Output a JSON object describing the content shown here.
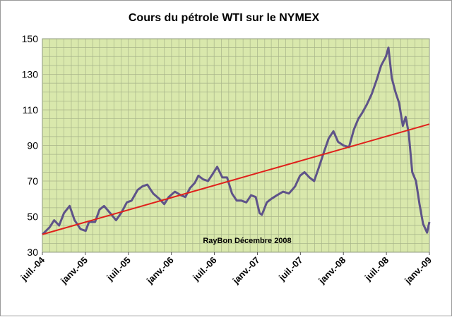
{
  "chart_data": {
    "type": "line",
    "title": "Cours du pétrole WTI sur le NYMEX",
    "annotation": "RayBon Décembre 2008",
    "xlabel": "",
    "ylabel": "",
    "x_tick_labels": [
      "juil.-04",
      "janv.-05",
      "juil.-05",
      "janv.-06",
      "juil.-06",
      "janv.-07",
      "juil.-07",
      "janv.-08",
      "juil.-08",
      "janv.-09"
    ],
    "xlim": [
      "2004-07-01",
      "2009-01-01"
    ],
    "ylim": [
      30,
      150
    ],
    "y_ticks": [
      30,
      50,
      70,
      90,
      110,
      130,
      150
    ],
    "grid": true,
    "legend": "none",
    "colors": {
      "plot_background": "#d9e8ac",
      "price_line": "#5e5389",
      "trend_line": "#e0201b",
      "grid": "#a8b58a"
    },
    "series": [
      {
        "x": [
          "2004-07-01",
          "2004-08-01",
          "2004-08-20",
          "2004-09-10",
          "2004-10-01",
          "2004-10-25",
          "2004-11-15",
          "2004-12-10",
          "2005-01-01",
          "2005-01-15",
          "2005-02-10",
          "2005-03-01",
          "2005-03-20",
          "2005-04-15",
          "2005-05-10",
          "2005-06-01",
          "2005-06-25",
          "2005-07-15",
          "2005-08-10",
          "2005-08-30",
          "2005-09-20",
          "2005-10-15",
          "2005-11-10",
          "2005-12-01",
          "2005-12-20",
          "2006-01-15",
          "2006-02-10",
          "2006-03-01",
          "2006-03-20",
          "2006-04-10",
          "2006-04-25",
          "2006-05-15",
          "2006-06-05",
          "2006-06-25",
          "2006-07-14",
          "2006-08-05",
          "2006-08-25",
          "2006-09-15",
          "2006-10-05",
          "2006-10-25",
          "2006-11-15",
          "2006-12-05",
          "2006-12-25",
          "2007-01-10",
          "2007-01-20",
          "2007-02-10",
          "2007-03-01",
          "2007-03-25",
          "2007-04-20",
          "2007-05-15",
          "2007-06-10",
          "2007-07-01",
          "2007-07-20",
          "2007-08-10",
          "2007-08-30",
          "2007-09-20",
          "2007-10-10",
          "2007-10-31",
          "2007-11-20",
          "2007-12-10",
          "2008-01-02",
          "2008-01-25",
          "2008-02-15",
          "2008-03-05",
          "2008-03-20",
          "2008-04-10",
          "2008-05-01",
          "2008-05-22",
          "2008-06-10",
          "2008-06-30",
          "2008-07-11",
          "2008-07-25",
          "2008-08-10",
          "2008-08-25",
          "2008-09-10",
          "2008-09-22",
          "2008-10-05",
          "2008-10-20",
          "2008-11-05",
          "2008-11-20",
          "2008-12-05",
          "2008-12-22",
          "2009-01-01"
        ],
        "values": [
          40,
          44,
          48,
          45,
          52,
          56,
          48,
          43,
          42,
          47,
          47,
          54,
          56,
          52,
          48,
          52,
          58,
          59,
          65,
          67,
          68,
          63,
          60,
          57,
          61,
          64,
          62,
          61,
          66,
          69,
          73,
          71,
          70,
          74,
          78,
          72,
          72,
          63,
          59,
          59,
          58,
          62,
          61,
          52,
          51,
          58,
          60,
          62,
          64,
          63,
          67,
          73,
          75,
          72,
          70,
          78,
          86,
          94,
          98,
          92,
          90,
          89,
          99,
          105,
          108,
          113,
          119,
          127,
          135,
          140,
          145,
          128,
          120,
          114,
          101,
          106,
          97,
          75,
          70,
          57,
          46,
          41,
          47
        ]
      },
      {
        "name": "",
        "x": [
          "2004-07-01",
          "2009-01-01"
        ],
        "values": [
          40,
          102
        ]
      }
    ]
  }
}
